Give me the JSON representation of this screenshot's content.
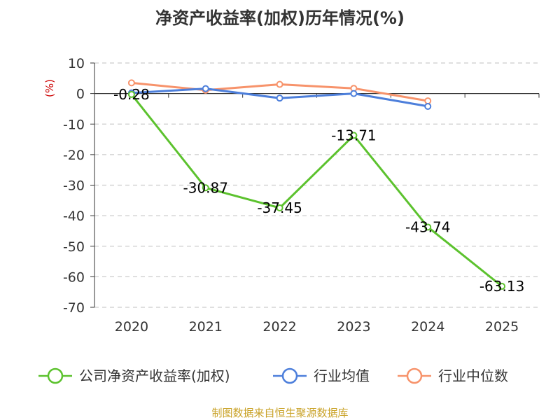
{
  "chart_data": {
    "type": "line",
    "title": "净资产收益率(加权)历年情况(%)",
    "ylabel": "(%)",
    "xlabel": "",
    "categories": [
      "2020",
      "2021",
      "2022",
      "2023",
      "2024",
      "2025"
    ],
    "ylim": [
      -70,
      10
    ],
    "yticks": [
      10,
      0,
      -10,
      -20,
      -30,
      -40,
      -50,
      -60,
      -70
    ],
    "grid": true,
    "legend_position": "bottom",
    "series": [
      {
        "name": "公司净资产收益率(加权)",
        "color": "#5cc22e",
        "values": [
          -0.28,
          -30.87,
          -37.45,
          -13.71,
          -43.74,
          -63.13
        ],
        "labels": [
          "-0.28",
          "-30.87",
          "-37.45",
          "-13.71",
          "-43.74",
          "-63.13"
        ],
        "show_labels": true
      },
      {
        "name": "行业均值",
        "color": "#4d7fdb",
        "values": [
          0.2,
          1.6,
          -1.5,
          0.0,
          -4.2,
          null
        ],
        "show_labels": false
      },
      {
        "name": "行业中位数",
        "color": "#f7936b",
        "values": [
          3.5,
          1.1,
          3.0,
          1.7,
          -2.4,
          null
        ],
        "show_labels": false
      }
    ]
  },
  "source": "制图数据来自恒生聚源数据库"
}
